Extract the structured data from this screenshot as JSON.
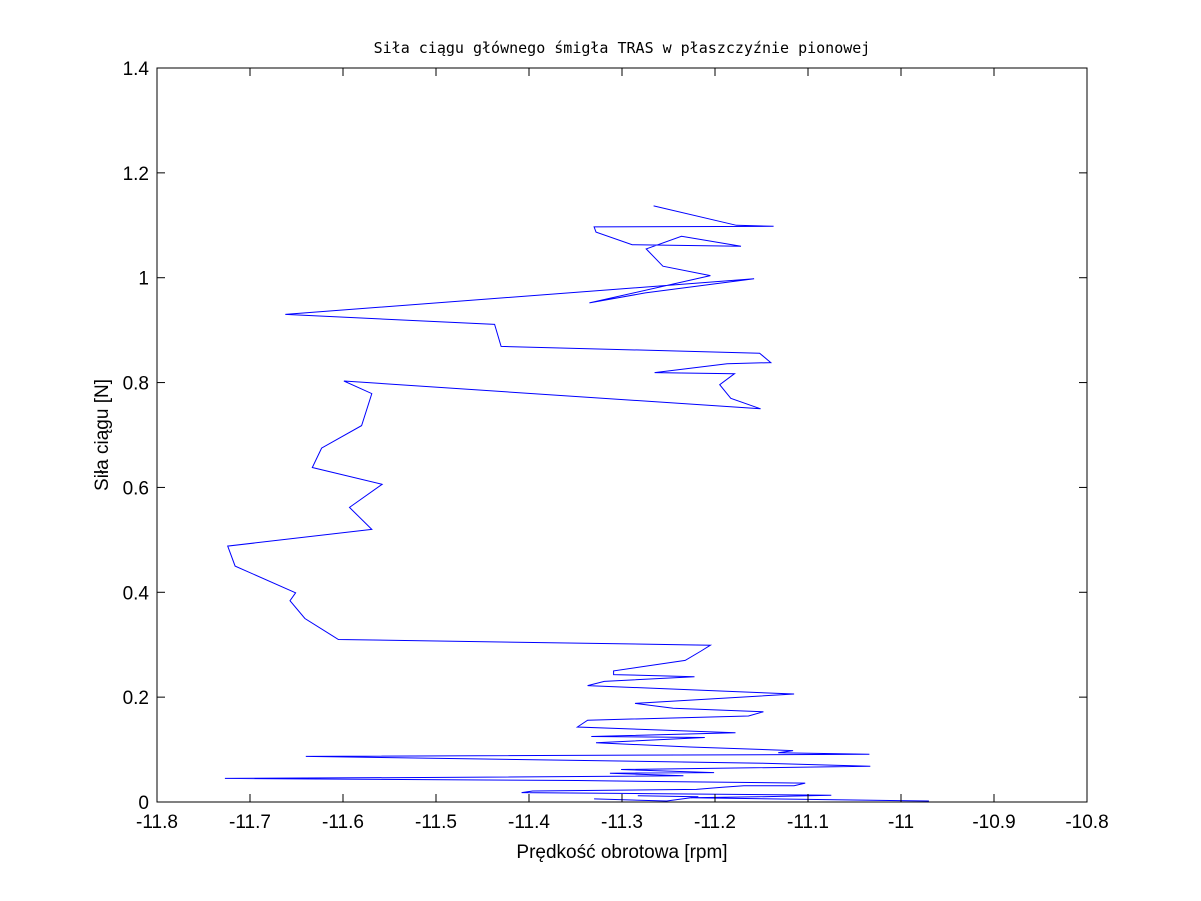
{
  "chart_data": {
    "type": "line",
    "title": "Siła ciągu głównego śmigła TRAS w płaszczyźnie pionowej",
    "xlabel": "Prędkość obrotowa [rpm]",
    "ylabel": "Siła ciągu [N]",
    "xlim": [
      -11.8,
      -10.8
    ],
    "ylim": [
      0,
      1.4
    ],
    "x_ticks": [
      -11.8,
      -11.7,
      -11.6,
      -11.5,
      -11.4,
      -11.3,
      -11.2,
      -11.1,
      -11.0,
      -10.9,
      -10.8
    ],
    "x_tick_labels": [
      "-11.8",
      "-11.7",
      "-11.6",
      "-11.5",
      "-11.4",
      "-11.3",
      "-11.2",
      "-11.1",
      "-11",
      "-10.9",
      "-10.8"
    ],
    "y_ticks": [
      0,
      0.2,
      0.4,
      0.6,
      0.8,
      1.0,
      1.2,
      1.4
    ],
    "y_tick_labels": [
      "0",
      "0.2",
      "0.4",
      "0.6",
      "0.8",
      "1",
      "1.2",
      "1.4"
    ],
    "grid": false,
    "line_color": "#0000ff",
    "series": [
      {
        "x": [
          -11.266,
          -11.177,
          -11.137,
          -11.33,
          -11.328,
          -11.289,
          -11.172,
          -11.236,
          -11.274,
          -11.256,
          -11.205,
          -11.335,
          -11.275,
          -11.158,
          -11.662,
          -11.437,
          -11.43,
          -11.152,
          -11.14,
          -11.187,
          -11.265,
          -11.179,
          -11.195,
          -11.183,
          -11.151,
          -11.599,
          -11.569,
          -11.58,
          -11.623,
          -11.633,
          -11.558,
          -11.593,
          -11.569,
          -11.724,
          -11.716,
          -11.651,
          -11.657,
          -11.641,
          -11.605,
          -11.205,
          -11.215,
          -11.232,
          -11.309,
          -11.309,
          -11.222,
          -11.319,
          -11.337,
          -11.115,
          -11.286,
          -11.245,
          -11.148,
          -11.164,
          -11.337,
          -11.348,
          -11.178,
          -11.333,
          -11.211,
          -11.328,
          -11.227,
          -11.116,
          -11.132,
          -11.034,
          -11.64,
          -11.148,
          -11.033,
          -11.301,
          -11.201,
          -11.313,
          -11.234,
          -11.491,
          -11.727,
          -11.348,
          -11.251,
          -11.103,
          -11.115,
          -11.169,
          -11.192,
          -11.22,
          -11.396,
          -11.408,
          -11.275,
          -11.075,
          -11.154,
          -11.226,
          -10.97
        ]
      },
      {
        "x": [
          -11.33,
          -11.252,
          -11.218,
          -11.283
        ],
        "y": [
          0.006,
          0.002,
          0.01,
          0.012
        ]
      }
    ]
  }
}
